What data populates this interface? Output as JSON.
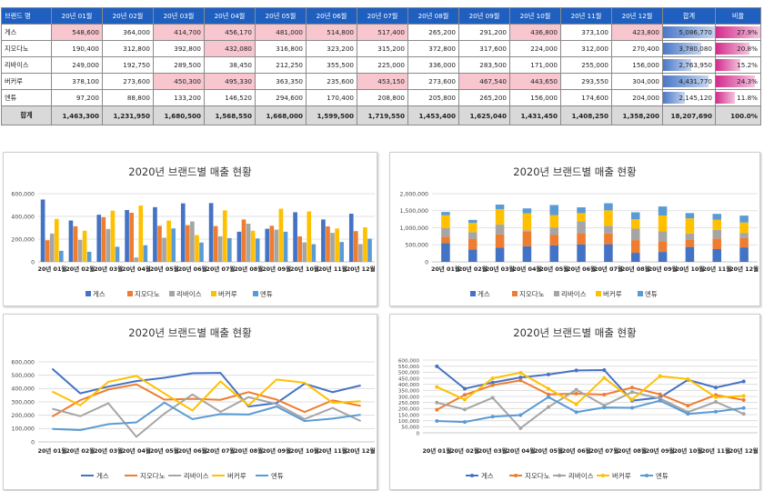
{
  "table": {
    "headers": [
      "브랜드 명",
      "20년 01월",
      "20년 02월",
      "20년 03월",
      "20년 04월",
      "20년 05월",
      "20년 06월",
      "20년 07월",
      "20년 08월",
      "20년 09월",
      "20년 10월",
      "20년 11월",
      "20년 12월",
      "합계",
      "비율"
    ],
    "rows": [
      {
        "brand": "게스",
        "values": [
          "548,600",
          "364,000",
          "414,700",
          "456,170",
          "481,000",
          "514,800",
          "517,400",
          "265,200",
          "291,200",
          "436,800",
          "373,100",
          "423,800"
        ],
        "highlight": [
          true,
          false,
          true,
          true,
          true,
          true,
          true,
          false,
          false,
          true,
          false,
          true
        ],
        "total": "5,086,770",
        "total_fill": 1.0,
        "ratio": "27.9%",
        "ratio_fill": 1.0
      },
      {
        "brand": "지오다노",
        "values": [
          "190,400",
          "312,800",
          "392,800",
          "432,080",
          "316,800",
          "323,200",
          "315,200",
          "372,800",
          "317,600",
          "224,000",
          "312,000",
          "270,400"
        ],
        "highlight": [
          false,
          false,
          false,
          true,
          false,
          false,
          false,
          false,
          false,
          false,
          false,
          false
        ],
        "total": "3,780,080",
        "total_fill": 0.74,
        "ratio": "20.8%",
        "ratio_fill": 0.75
      },
      {
        "brand": "리바이스",
        "values": [
          "249,000",
          "192,750",
          "289,500",
          "38,450",
          "212,250",
          "355,500",
          "225,000",
          "336,000",
          "283,500",
          "171,000",
          "255,000",
          "156,000"
        ],
        "highlight": [
          false,
          false,
          false,
          false,
          false,
          false,
          false,
          false,
          false,
          false,
          false,
          false
        ],
        "total": "2,763,950",
        "total_fill": 0.54,
        "ratio": "15.2%",
        "ratio_fill": 0.55
      },
      {
        "brand": "버커루",
        "values": [
          "378,100",
          "273,600",
          "450,300",
          "495,330",
          "363,350",
          "235,600",
          "453,150",
          "273,600",
          "467,540",
          "443,650",
          "293,550",
          "304,000"
        ],
        "highlight": [
          false,
          false,
          true,
          true,
          false,
          false,
          true,
          false,
          true,
          true,
          false,
          false
        ],
        "total": "4,431,770",
        "total_fill": 0.87,
        "ratio": "24.3%",
        "ratio_fill": 0.87
      },
      {
        "brand": "엔튜",
        "values": [
          "97,200",
          "88,800",
          "133,200",
          "146,520",
          "294,600",
          "170,400",
          "208,800",
          "205,800",
          "265,200",
          "156,000",
          "174,600",
          "204,000"
        ],
        "highlight": [
          false,
          false,
          false,
          false,
          false,
          false,
          false,
          false,
          false,
          false,
          false,
          false
        ],
        "total": "2,145,120",
        "total_fill": 0.42,
        "ratio": "11.8%",
        "ratio_fill": 0.42
      }
    ],
    "total_row": {
      "label": "합계",
      "values": [
        "1,463,300",
        "1,231,950",
        "1,680,500",
        "1,568,550",
        "1,668,000",
        "1,599,500",
        "1,719,550",
        "1,453,400",
        "1,625,040",
        "1,431,450",
        "1,408,250",
        "1,358,200"
      ],
      "total": "18,207,690",
      "ratio": "100.0%"
    }
  },
  "chart_data": [
    {
      "type": "bar",
      "title": "2020년 브랜드별 매출 현황",
      "categories": [
        "20년 01월",
        "20년 02월",
        "20년 03월",
        "20년 04월",
        "20년 05월",
        "20년 06월",
        "20년 07월",
        "20년 08월",
        "20년 09월",
        "20년 10월",
        "20년 11월",
        "20년 12월"
      ],
      "ylim": [
        0,
        600000
      ],
      "yticks": [
        0,
        200000,
        400000,
        600000
      ],
      "ytick_labels": [
        "0",
        "200,000",
        "400,000",
        "600,000"
      ],
      "series": [
        {
          "name": "게스",
          "color": "#4472c4",
          "values": [
            548600,
            364000,
            414700,
            456170,
            481000,
            514800,
            517400,
            265200,
            291200,
            436800,
            373100,
            423800
          ]
        },
        {
          "name": "지오다노",
          "color": "#ed7d31",
          "values": [
            190400,
            312800,
            392800,
            432080,
            316800,
            323200,
            315200,
            372800,
            317600,
            224000,
            312000,
            270400
          ]
        },
        {
          "name": "리바이스",
          "color": "#a5a5a5",
          "values": [
            249000,
            192750,
            289500,
            38450,
            212250,
            355500,
            225000,
            336000,
            283500,
            171000,
            255000,
            156000
          ]
        },
        {
          "name": "버커루",
          "color": "#ffc000",
          "values": [
            378100,
            273600,
            450300,
            495330,
            363350,
            235600,
            453150,
            273600,
            467540,
            443650,
            293550,
            304000
          ]
        },
        {
          "name": "엔튜",
          "color": "#5b9bd5",
          "values": [
            97200,
            88800,
            133200,
            146520,
            294600,
            170400,
            208800,
            205800,
            265200,
            156000,
            174600,
            204000
          ]
        }
      ],
      "legend": "bottom"
    },
    {
      "type": "bar",
      "stacked": true,
      "title": "2020년 브랜드별 매출 현황",
      "categories": [
        "20년 01월",
        "20년 02월",
        "20년 03월",
        "20년 04월",
        "20년 05월",
        "20년 06월",
        "20년 07월",
        "20년 08월",
        "20년 09월",
        "20년 10월",
        "20년 11월",
        "20년 12월"
      ],
      "ylim": [
        0,
        2000000
      ],
      "yticks": [
        0,
        500000,
        1000000,
        1500000,
        2000000
      ],
      "ytick_labels": [
        "0",
        "500,000",
        "1,000,000",
        "1,500,000",
        "2,000,000"
      ],
      "series": [
        {
          "name": "게스",
          "color": "#4472c4",
          "values": [
            548600,
            364000,
            414700,
            456170,
            481000,
            514800,
            517400,
            265200,
            291200,
            436800,
            373100,
            423800
          ]
        },
        {
          "name": "지오다노",
          "color": "#ed7d31",
          "values": [
            190400,
            312800,
            392800,
            432080,
            316800,
            323200,
            315200,
            372800,
            317600,
            224000,
            312000,
            270400
          ]
        },
        {
          "name": "리바이스",
          "color": "#a5a5a5",
          "values": [
            249000,
            192750,
            289500,
            38450,
            212250,
            355500,
            225000,
            336000,
            283500,
            171000,
            255000,
            156000
          ]
        },
        {
          "name": "버커루",
          "color": "#ffc000",
          "values": [
            378100,
            273600,
            450300,
            495330,
            363350,
            235600,
            453150,
            273600,
            467540,
            443650,
            293550,
            304000
          ]
        },
        {
          "name": "엔튜",
          "color": "#5b9bd5",
          "values": [
            97200,
            88800,
            133200,
            146520,
            294600,
            170400,
            208800,
            205800,
            265200,
            156000,
            174600,
            204000
          ]
        }
      ],
      "legend": "bottom"
    },
    {
      "type": "line",
      "title": "2020년 브랜드별 매출 현황",
      "categories": [
        "20년 01월",
        "20년 02월",
        "20년 03월",
        "20년 04월",
        "20년 05월",
        "20년 06월",
        "20년 07월",
        "20년 08월",
        "20년 09월",
        "20년 10월",
        "20년 11월",
        "20년 12월"
      ],
      "ylim": [
        0,
        600000
      ],
      "yticks": [
        0,
        100000,
        200000,
        300000,
        400000,
        500000,
        600000
      ],
      "ytick_labels": [
        "0",
        "100,000",
        "200,000",
        "300,000",
        "400,000",
        "500,000",
        "600,000"
      ],
      "series": [
        {
          "name": "게스",
          "color": "#4472c4",
          "values": [
            548600,
            364000,
            414700,
            456170,
            481000,
            514800,
            517400,
            265200,
            291200,
            436800,
            373100,
            423800
          ]
        },
        {
          "name": "지오다노",
          "color": "#ed7d31",
          "values": [
            190400,
            312800,
            392800,
            432080,
            316800,
            323200,
            315200,
            372800,
            317600,
            224000,
            312000,
            270400
          ]
        },
        {
          "name": "리바이스",
          "color": "#a5a5a5",
          "values": [
            249000,
            192750,
            289500,
            38450,
            212250,
            355500,
            225000,
            336000,
            283500,
            171000,
            255000,
            156000
          ]
        },
        {
          "name": "버커루",
          "color": "#ffc000",
          "values": [
            378100,
            273600,
            450300,
            495330,
            363350,
            235600,
            453150,
            273600,
            467540,
            443650,
            293550,
            304000
          ]
        },
        {
          "name": "엔튜",
          "color": "#5b9bd5",
          "values": [
            97200,
            88800,
            133200,
            146520,
            294600,
            170400,
            208800,
            205800,
            265200,
            156000,
            174600,
            204000
          ]
        }
      ],
      "legend": "bottom"
    },
    {
      "type": "line",
      "markers": true,
      "title": "2020년 브랜드별 매출 현황",
      "categories": [
        "20년 01월",
        "20년 02월",
        "20년 03월",
        "20년 04월",
        "20년 05월",
        "20년 06월",
        "20년 07월",
        "20년 08월",
        "20년 09월",
        "20년 10월",
        "20년 11월",
        "20년 12월"
      ],
      "ylim": [
        0,
        600000
      ],
      "yticks": [
        0,
        50000,
        100000,
        150000,
        200000,
        250000,
        300000,
        350000,
        400000,
        450000,
        500000,
        550000,
        600000
      ],
      "ytick_labels": [
        "0",
        "50,000",
        "100,000",
        "150,000",
        "200,000",
        "250,000",
        "300,000",
        "350,000",
        "400,000",
        "450,000",
        "500,000",
        "550,000",
        "600,000"
      ],
      "series": [
        {
          "name": "게스",
          "color": "#4472c4",
          "values": [
            548600,
            364000,
            414700,
            456170,
            481000,
            514800,
            517400,
            265200,
            291200,
            436800,
            373100,
            423800
          ]
        },
        {
          "name": "지오다노",
          "color": "#ed7d31",
          "values": [
            190400,
            312800,
            392800,
            432080,
            316800,
            323200,
            315200,
            372800,
            317600,
            224000,
            312000,
            270400
          ]
        },
        {
          "name": "리바이스",
          "color": "#a5a5a5",
          "values": [
            249000,
            192750,
            289500,
            38450,
            212250,
            355500,
            225000,
            336000,
            283500,
            171000,
            255000,
            156000
          ]
        },
        {
          "name": "버커루",
          "color": "#ffc000",
          "values": [
            378100,
            273600,
            450300,
            495330,
            363350,
            235600,
            453150,
            273600,
            467540,
            443650,
            293550,
            304000
          ]
        },
        {
          "name": "엔튜",
          "color": "#5b9bd5",
          "values": [
            97200,
            88800,
            133200,
            146520,
            294600,
            170400,
            208800,
            205800,
            265200,
            156000,
            174600,
            204000
          ]
        }
      ],
      "legend": "bottom"
    }
  ]
}
